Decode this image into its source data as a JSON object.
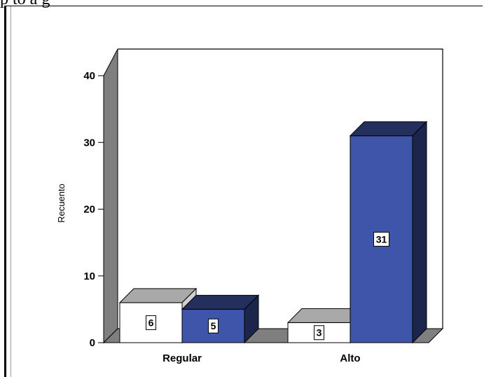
{
  "header": {
    "visible_text": "p   to    a       g"
  },
  "chart_data": {
    "type": "bar",
    "categories": [
      "Regular",
      "Alto"
    ],
    "series": [
      {
        "values": [
          6,
          3
        ],
        "color": "#ffffff"
      },
      {
        "values": [
          5,
          31
        ],
        "color": "#3f55a9"
      }
    ],
    "data_labels": [
      [
        "6",
        "3"
      ],
      [
        "5",
        "31"
      ]
    ],
    "ylabel": "Recuento",
    "xlabel": "",
    "ylim": [
      0,
      40
    ],
    "yticks": [
      "0",
      "10",
      "20",
      "30",
      "40"
    ],
    "style": "3d",
    "grid": false
  }
}
